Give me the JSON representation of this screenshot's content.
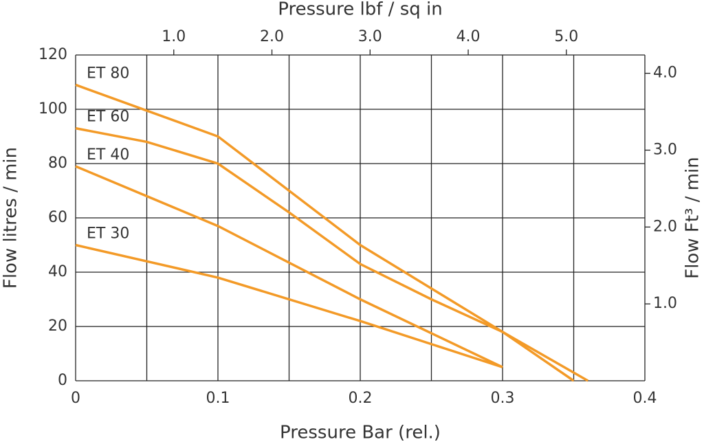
{
  "chart_data": {
    "type": "line",
    "xlabel": "Pressure Bar (rel.)",
    "x2label": "Pressure lbf / sq in",
    "ylabel": "Flow litres / min",
    "y2label": "Flow  Ft³ / min",
    "xlim": [
      0,
      0.4
    ],
    "xticks": [
      0,
      0.1,
      0.2,
      0.3,
      0.4
    ],
    "xgrid": [
      0,
      0.05,
      0.1,
      0.15,
      0.2,
      0.25,
      0.3,
      0.35,
      0.4
    ],
    "x2lim": [
      0,
      5.8
    ],
    "x2ticks": [
      {
        "value": 1,
        "label": "1.0"
      },
      {
        "value": 2,
        "label": "2.0"
      },
      {
        "value": 3,
        "label": "3.0"
      },
      {
        "value": 4,
        "label": "4.0"
      },
      {
        "value": 5,
        "label": "5.0"
      }
    ],
    "ylim": [
      0,
      120
    ],
    "yticks": [
      0,
      20,
      40,
      60,
      80,
      100,
      120
    ],
    "y2lim": [
      0,
      4.238
    ],
    "y2ticks": [
      {
        "value": 1,
        "label": "1.0"
      },
      {
        "value": 2,
        "label": "2.0"
      },
      {
        "value": 3,
        "label": "3.0"
      },
      {
        "value": 4,
        "label": "4.0"
      }
    ],
    "grid": true,
    "series": [
      {
        "name": "ET 80",
        "color": "#f39a27",
        "x": [
          0,
          0.1,
          0.2,
          0.25,
          0.3,
          0.36
        ],
        "values": [
          109,
          90,
          50,
          34,
          18,
          0
        ]
      },
      {
        "name": "ET 60",
        "color": "#f39a27",
        "x": [
          0,
          0.05,
          0.1,
          0.15,
          0.2,
          0.25,
          0.3,
          0.35
        ],
        "values": [
          93,
          88,
          80,
          62,
          43,
          30,
          18,
          0
        ]
      },
      {
        "name": "ET 40",
        "color": "#f39a27",
        "x": [
          0,
          0.1,
          0.2,
          0.3
        ],
        "values": [
          79,
          57,
          30,
          5
        ]
      },
      {
        "name": "ET 30",
        "color": "#f39a27",
        "x": [
          0,
          0.1,
          0.2,
          0.3
        ],
        "values": [
          50,
          38,
          22,
          5
        ]
      }
    ]
  }
}
